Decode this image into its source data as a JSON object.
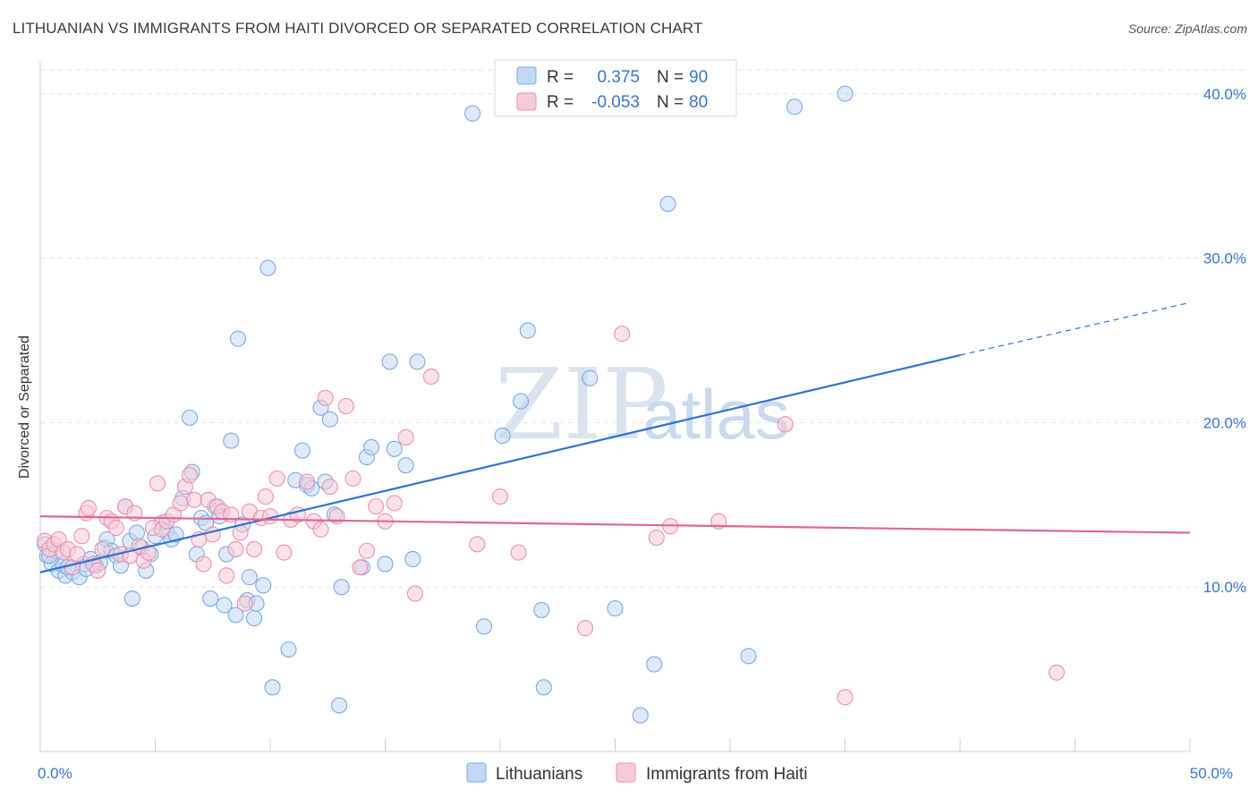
{
  "title": "LITHUANIAN VS IMMIGRANTS FROM HAITI DIVORCED OR SEPARATED CORRELATION CHART",
  "source": "Source: ZipAtlas.com",
  "watermark": {
    "left": "ZIP",
    "right": "atlas"
  },
  "chart_data": {
    "type": "scatter",
    "xlim": [
      0,
      50
    ],
    "ylim": [
      0,
      42
    ],
    "ylabel": "Divorced or Separated",
    "x_tick_labels": [
      {
        "value": 0,
        "label": "0.0%"
      },
      {
        "value": 50,
        "label": "50.0%"
      }
    ],
    "y_tick_labels": [
      {
        "value": 10,
        "label": "10.0%"
      },
      {
        "value": 20,
        "label": "20.0%"
      },
      {
        "value": 30,
        "label": "30.0%"
      },
      {
        "value": 40,
        "label": "40.0%"
      }
    ],
    "grid": true,
    "legend_position": "top-center",
    "stats": [
      {
        "r_label": "R =",
        "r_value": "0.375",
        "n_label": "N =",
        "n_value": "90"
      },
      {
        "r_label": "R =",
        "r_value": "-0.053",
        "n_label": "N =",
        "n_value": "80"
      }
    ],
    "series": [
      {
        "name": "Lithuanians",
        "color": "#7aaae6",
        "fill": "#c3d8f4",
        "line_color": "#2e73d1",
        "trend": {
          "x0": 0,
          "y0": 10.9,
          "x1": 40,
          "y1": 24.1,
          "x_dash_end": 50,
          "y_dash_end": 27.3
        },
        "points": [
          [
            0.2,
            12.6
          ],
          [
            0.3,
            11.9
          ],
          [
            0.5,
            11.4
          ],
          [
            0.7,
            12.2
          ],
          [
            0.8,
            11.0
          ],
          [
            1.0,
            11.3
          ],
          [
            1.1,
            10.7
          ],
          [
            1.4,
            10.9
          ],
          [
            1.7,
            10.6
          ],
          [
            1.9,
            11.4
          ],
          [
            2.2,
            11.7
          ],
          [
            2.4,
            11.3
          ],
          [
            2.6,
            11.5
          ],
          [
            2.8,
            12.4
          ],
          [
            2.9,
            12.9
          ],
          [
            3.1,
            12.2
          ],
          [
            3.3,
            11.9
          ],
          [
            3.5,
            11.3
          ],
          [
            3.7,
            14.9
          ],
          [
            3.9,
            12.8
          ],
          [
            4.2,
            13.3
          ],
          [
            4.4,
            12.4
          ],
          [
            4.6,
            11.0
          ],
          [
            4.8,
            12.0
          ],
          [
            5.0,
            13.1
          ],
          [
            5.3,
            13.9
          ],
          [
            5.5,
            13.4
          ],
          [
            5.7,
            12.9
          ],
          [
            5.9,
            13.2
          ],
          [
            6.2,
            15.4
          ],
          [
            6.5,
            20.3
          ],
          [
            6.6,
            17.0
          ],
          [
            6.8,
            12.0
          ],
          [
            7.0,
            14.2
          ],
          [
            7.2,
            13.9
          ],
          [
            7.4,
            9.3
          ],
          [
            7.6,
            14.9
          ],
          [
            7.8,
            14.3
          ],
          [
            8.0,
            8.9
          ],
          [
            8.1,
            12.0
          ],
          [
            8.3,
            18.9
          ],
          [
            8.5,
            8.3
          ],
          [
            8.6,
            25.1
          ],
          [
            8.8,
            13.8
          ],
          [
            9.0,
            9.2
          ],
          [
            9.1,
            10.6
          ],
          [
            9.3,
            8.1
          ],
          [
            9.4,
            9.0
          ],
          [
            9.7,
            10.1
          ],
          [
            9.9,
            29.4
          ],
          [
            10.1,
            3.9
          ],
          [
            10.8,
            6.2
          ],
          [
            11.1,
            16.5
          ],
          [
            11.4,
            18.3
          ],
          [
            11.6,
            16.2
          ],
          [
            11.8,
            16.0
          ],
          [
            12.2,
            20.9
          ],
          [
            12.4,
            16.4
          ],
          [
            12.6,
            20.2
          ],
          [
            12.8,
            14.4
          ],
          [
            13.0,
            2.8
          ],
          [
            13.1,
            10.0
          ],
          [
            14.0,
            11.2
          ],
          [
            14.2,
            17.9
          ],
          [
            14.4,
            18.5
          ],
          [
            15.0,
            11.4
          ],
          [
            15.2,
            23.7
          ],
          [
            15.4,
            18.4
          ],
          [
            15.9,
            17.4
          ],
          [
            16.2,
            11.7
          ],
          [
            16.4,
            23.7
          ],
          [
            18.8,
            38.8
          ],
          [
            19.3,
            7.6
          ],
          [
            20.1,
            19.2
          ],
          [
            20.9,
            21.3
          ],
          [
            21.2,
            25.6
          ],
          [
            21.8,
            8.6
          ],
          [
            21.9,
            3.9
          ],
          [
            23.9,
            22.7
          ],
          [
            25.0,
            8.7
          ],
          [
            26.1,
            2.2
          ],
          [
            26.7,
            5.3
          ],
          [
            27.3,
            33.3
          ],
          [
            30.8,
            5.8
          ],
          [
            32.8,
            39.2
          ],
          [
            35.0,
            40.0
          ],
          [
            0.4,
            11.9
          ],
          [
            1.2,
            11.2
          ],
          [
            2.0,
            11.1
          ],
          [
            4.0,
            9.3
          ]
        ]
      },
      {
        "name": "Immigrants from Haiti",
        "color": "#ec90ad",
        "fill": "#f7cad8",
        "line_color": "#e06690",
        "trend": {
          "x0": 0,
          "y0": 14.3,
          "x1": 50,
          "y1": 13.3
        },
        "points": [
          [
            0.2,
            12.8
          ],
          [
            0.4,
            12.3
          ],
          [
            0.6,
            12.6
          ],
          [
            0.8,
            12.9
          ],
          [
            1.0,
            12.1
          ],
          [
            1.2,
            12.3
          ],
          [
            1.4,
            11.2
          ],
          [
            1.6,
            12.0
          ],
          [
            1.8,
            13.1
          ],
          [
            2.0,
            14.5
          ],
          [
            2.1,
            14.8
          ],
          [
            2.3,
            11.4
          ],
          [
            2.5,
            11.0
          ],
          [
            2.7,
            12.3
          ],
          [
            2.9,
            14.2
          ],
          [
            3.1,
            14.0
          ],
          [
            3.3,
            13.6
          ],
          [
            3.5,
            12.0
          ],
          [
            3.7,
            14.9
          ],
          [
            3.9,
            11.9
          ],
          [
            4.1,
            14.5
          ],
          [
            4.3,
            12.5
          ],
          [
            4.5,
            11.6
          ],
          [
            4.7,
            12.1
          ],
          [
            4.9,
            13.6
          ],
          [
            5.1,
            16.3
          ],
          [
            5.3,
            13.5
          ],
          [
            5.5,
            14.0
          ],
          [
            5.8,
            14.4
          ],
          [
            6.1,
            15.1
          ],
          [
            6.3,
            16.1
          ],
          [
            6.5,
            16.8
          ],
          [
            6.7,
            15.3
          ],
          [
            6.9,
            12.9
          ],
          [
            7.1,
            11.4
          ],
          [
            7.3,
            15.3
          ],
          [
            7.5,
            13.2
          ],
          [
            7.7,
            14.9
          ],
          [
            7.9,
            14.6
          ],
          [
            8.1,
            10.7
          ],
          [
            8.3,
            14.4
          ],
          [
            8.5,
            12.3
          ],
          [
            8.7,
            13.3
          ],
          [
            8.9,
            9.0
          ],
          [
            9.1,
            14.6
          ],
          [
            9.3,
            12.3
          ],
          [
            9.6,
            14.2
          ],
          [
            9.8,
            15.5
          ],
          [
            10.0,
            14.3
          ],
          [
            10.3,
            16.6
          ],
          [
            10.6,
            12.1
          ],
          [
            10.9,
            14.1
          ],
          [
            11.2,
            14.4
          ],
          [
            11.6,
            16.4
          ],
          [
            11.9,
            14.0
          ],
          [
            12.2,
            13.5
          ],
          [
            12.4,
            21.5
          ],
          [
            12.6,
            16.1
          ],
          [
            12.9,
            14.3
          ],
          [
            13.3,
            21.0
          ],
          [
            13.6,
            16.6
          ],
          [
            13.9,
            11.2
          ],
          [
            14.2,
            12.2
          ],
          [
            14.6,
            14.9
          ],
          [
            15.0,
            14.0
          ],
          [
            15.4,
            15.1
          ],
          [
            15.9,
            19.1
          ],
          [
            16.3,
            9.6
          ],
          [
            17.0,
            22.8
          ],
          [
            19.0,
            12.6
          ],
          [
            20.0,
            15.5
          ],
          [
            20.8,
            12.1
          ],
          [
            23.7,
            7.5
          ],
          [
            25.3,
            25.4
          ],
          [
            26.8,
            13.0
          ],
          [
            27.4,
            13.7
          ],
          [
            29.5,
            14.0
          ],
          [
            32.4,
            19.9
          ],
          [
            35.0,
            3.3
          ],
          [
            44.2,
            4.8
          ]
        ]
      }
    ]
  }
}
